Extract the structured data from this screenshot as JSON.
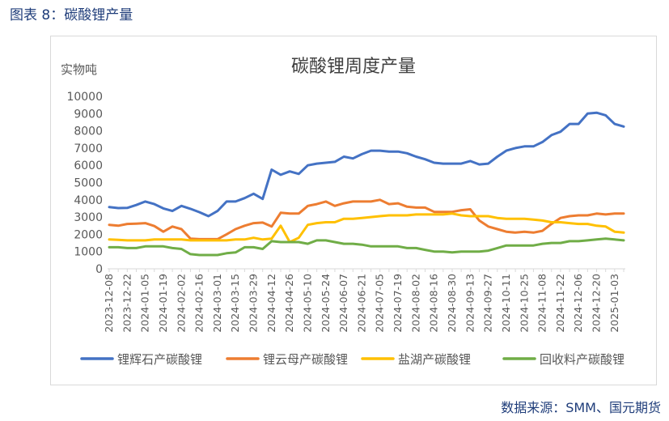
{
  "caption": "图表 8：碳酸锂产量",
  "source": "数据来源：SMM、国元期货",
  "chart_data": {
    "type": "line",
    "title": "碳酸锂周度产量",
    "ylabel": "实物吨",
    "ylim": [
      0,
      10000
    ],
    "yticks": [
      0,
      1000,
      2000,
      3000,
      4000,
      5000,
      6000,
      7000,
      8000,
      9000,
      10000
    ],
    "grid": false,
    "legend_position": "bottom",
    "x": [
      "2023-12-08",
      "2023-12-15",
      "2023-12-22",
      "2023-12-29",
      "2024-01-05",
      "2024-01-12",
      "2024-01-19",
      "2024-01-26",
      "2024-02-02",
      "2024-02-09",
      "2024-02-16",
      "2024-02-23",
      "2024-03-01",
      "2024-03-08",
      "2024-03-15",
      "2024-03-22",
      "2024-03-29",
      "2024-04-05",
      "2024-04-12",
      "2024-04-19",
      "2024-04-26",
      "2024-05-03",
      "2024-05-10",
      "2024-05-17",
      "2024-05-24",
      "2024-05-31",
      "2024-06-07",
      "2024-06-14",
      "2024-06-21",
      "2024-06-28",
      "2024-07-05",
      "2024-07-12",
      "2024-07-19",
      "2024-07-26",
      "2024-08-02",
      "2024-08-09",
      "2024-08-16",
      "2024-08-23",
      "2024-08-30",
      "2024-09-06",
      "2024-09-13",
      "2024-09-20",
      "2024-09-27",
      "2024-10-04",
      "2024-10-11",
      "2024-10-18",
      "2024-10-25",
      "2024-11-01",
      "2024-11-08",
      "2024-11-15",
      "2024-11-22",
      "2024-11-29",
      "2024-12-06",
      "2024-12-13",
      "2024-12-20",
      "2024-12-27",
      "2025-01-03",
      "2025-01-10"
    ],
    "xtick_labels": [
      "2023-12-08",
      "2023-12-22",
      "2024-01-05",
      "2024-01-19",
      "2024-02-02",
      "2024-02-16",
      "2024-03-01",
      "2024-03-15",
      "2024-03-29",
      "2024-04-12",
      "2024-04-26",
      "2024-05-10",
      "2024-05-24",
      "2024-06-07",
      "2024-06-21",
      "2024-07-05",
      "2024-07-19",
      "2024-08-02",
      "2024-08-16",
      "2024-08-30",
      "2024-09-13",
      "2024-09-27",
      "2024-10-11",
      "2024-10-25",
      "2024-11-08",
      "2024-11-22",
      "2024-12-06",
      "2024-12-20",
      "2025-01-03"
    ],
    "series": [
      {
        "name": "锂辉石产碳酸锂",
        "color": "#4472c4",
        "values": [
          3580,
          3520,
          3530,
          3700,
          3900,
          3750,
          3500,
          3350,
          3650,
          3480,
          3280,
          3050,
          3350,
          3900,
          3900,
          4100,
          4350,
          4050,
          5750,
          5450,
          5650,
          5500,
          6000,
          6100,
          6150,
          6200,
          6500,
          6400,
          6650,
          6850,
          6850,
          6800,
          6800,
          6700,
          6500,
          6350,
          6150,
          6100,
          6100,
          6100,
          6250,
          6050,
          6100,
          6500,
          6850,
          7000,
          7100,
          7100,
          7350,
          7750,
          7950,
          8400,
          8400,
          9000,
          9050,
          8900,
          8400,
          8250
        ]
      },
      {
        "name": "锂云母产碳酸锂",
        "color": "#ed7d31",
        "values": [
          2550,
          2500,
          2600,
          2620,
          2650,
          2480,
          2150,
          2450,
          2300,
          1750,
          1720,
          1720,
          1720,
          2000,
          2300,
          2500,
          2650,
          2680,
          2450,
          3250,
          3200,
          3200,
          3650,
          3750,
          3900,
          3650,
          3800,
          3900,
          3900,
          3900,
          4000,
          3750,
          3800,
          3600,
          3550,
          3550,
          3300,
          3300,
          3300,
          3400,
          3450,
          2800,
          2450,
          2300,
          2150,
          2100,
          2150,
          2100,
          2200,
          2600,
          2950,
          3050,
          3100,
          3100,
          3200,
          3150,
          3200,
          3200
        ]
      },
      {
        "name": "盐湖产碳酸锂",
        "color": "#ffc000",
        "values": [
          1700,
          1680,
          1650,
          1650,
          1650,
          1700,
          1700,
          1700,
          1700,
          1650,
          1650,
          1650,
          1650,
          1650,
          1700,
          1700,
          1800,
          1700,
          1750,
          2500,
          1550,
          1800,
          2550,
          2650,
          2700,
          2700,
          2900,
          2900,
          2950,
          3000,
          3050,
          3100,
          3100,
          3100,
          3150,
          3150,
          3150,
          3150,
          3200,
          3100,
          3050,
          3050,
          3050,
          2950,
          2900,
          2900,
          2900,
          2850,
          2800,
          2700,
          2700,
          2650,
          2600,
          2600,
          2500,
          2450,
          2150,
          2100
        ]
      },
      {
        "name": "回收料产碳酸锂",
        "color": "#70ad47",
        "values": [
          1250,
          1250,
          1200,
          1200,
          1300,
          1300,
          1300,
          1200,
          1150,
          850,
          800,
          800,
          800,
          900,
          950,
          1250,
          1250,
          1150,
          1600,
          1550,
          1550,
          1550,
          1450,
          1650,
          1650,
          1550,
          1450,
          1450,
          1400,
          1300,
          1300,
          1300,
          1300,
          1200,
          1200,
          1100,
          1000,
          1000,
          950,
          1000,
          1000,
          1000,
          1050,
          1200,
          1350,
          1350,
          1350,
          1350,
          1450,
          1500,
          1500,
          1600,
          1600,
          1650,
          1700,
          1750,
          1700,
          1650
        ]
      }
    ]
  }
}
